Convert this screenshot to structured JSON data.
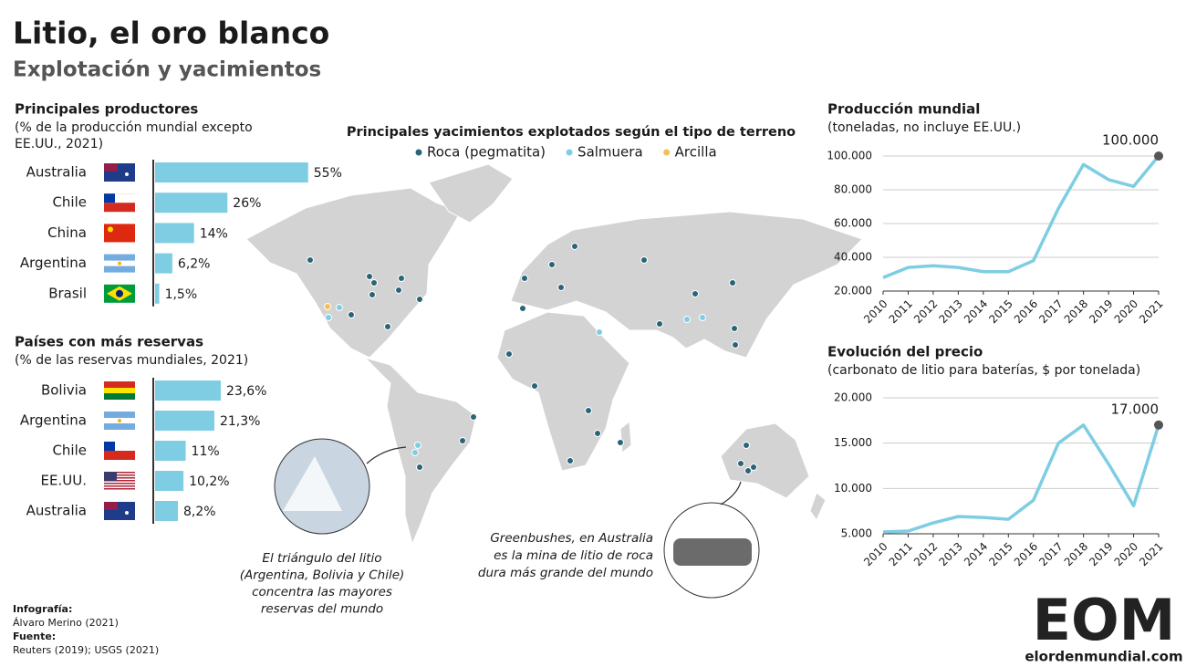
{
  "title": "Litio, el oro blanco",
  "subtitle": "Explotación y yacimientos",
  "chart_data": [
    {
      "type": "bar",
      "orientation": "horizontal",
      "title": "Principales productores",
      "subtitle": [
        "(% de la producción mundial excepto",
        "EE.UU., 2021)"
      ],
      "categories": [
        "Australia",
        "Chile",
        "China",
        "Argentina",
        "Brasil"
      ],
      "values": [
        55,
        26,
        14,
        6.2,
        1.5
      ],
      "value_labels": [
        "55%",
        "26%",
        "14%",
        "6,2%",
        "1,5%"
      ],
      "color": "#7ecde3"
    },
    {
      "type": "bar",
      "orientation": "horizontal",
      "title": "Países con más reservas",
      "subtitle": [
        "(% de las reservas mundiales, 2021)"
      ],
      "categories": [
        "Bolivia",
        "Argentina",
        "Chile",
        "EE.UU.",
        "Australia"
      ],
      "values": [
        23.6,
        21.3,
        11,
        10.2,
        8.2
      ],
      "value_labels": [
        "23,6%",
        "21,3%",
        "11%",
        "10,2%",
        "8,2%"
      ],
      "color": "#7ecde3"
    },
    {
      "type": "line",
      "title": "Producción mundial",
      "subtitle": [
        "(toneladas, no incluye EE.UU.)"
      ],
      "categories": [
        "2010",
        "2011",
        "2012",
        "2013",
        "2014",
        "2015",
        "2016",
        "2017",
        "2018",
        "2019",
        "2020",
        "2021"
      ],
      "values": [
        28000,
        34000,
        35000,
        34000,
        31500,
        31500,
        38000,
        69000,
        95000,
        86000,
        82000,
        100000
      ],
      "value_labels": [
        null,
        null,
        null,
        null,
        null,
        null,
        null,
        null,
        null,
        null,
        null,
        "100.000"
      ],
      "color": "#7ecde3",
      "ylim": [
        20000,
        100000
      ],
      "yticks": [
        {
          "value": 20000,
          "label": "20.000"
        },
        {
          "value": 40000,
          "label": "40.000"
        },
        {
          "value": 60000,
          "label": "60.000"
        },
        {
          "value": 80000,
          "label": "80.000"
        },
        {
          "value": 100000,
          "label": "100.000"
        }
      ],
      "grid": true
    },
    {
      "type": "line",
      "title": "Evolución del precio",
      "subtitle": [
        "(carbonato de litio para baterías, $ por tonelada)"
      ],
      "categories": [
        "2010",
        "2011",
        "2012",
        "2013",
        "2014",
        "2015",
        "2016",
        "2017",
        "2018",
        "2019",
        "2020",
        "2021"
      ],
      "values": [
        5200,
        5300,
        6200,
        6900,
        6800,
        6600,
        8700,
        15000,
        17000,
        12700,
        8100,
        17000
      ],
      "value_labels": [
        null,
        null,
        null,
        null,
        null,
        null,
        null,
        null,
        null,
        null,
        null,
        "17.000"
      ],
      "color": "#7ecde3",
      "ylim": [
        5000,
        20000
      ],
      "yticks": [
        {
          "value": 5000,
          "label": "5.000"
        },
        {
          "value": 10000,
          "label": "10.000"
        },
        {
          "value": 15000,
          "label": "15.000"
        },
        {
          "value": 20000,
          "label": "20.000"
        }
      ],
      "grid": true
    }
  ],
  "map": {
    "title": "Principales yacimientos explotados según el tipo de terreno",
    "legend": [
      {
        "label": "Roca (pegmatita)",
        "color": "#2a6478"
      },
      {
        "label": "Salmuera",
        "color": "#7ecde3"
      },
      {
        "label": "Arcilla",
        "color": "#f0c050"
      }
    ],
    "notes": [
      [
        "El triángulo del litio",
        "(Argentina, Bolivia y Chile)",
        "concentra las mayores",
        "reservas del mundo"
      ],
      [
        "Greenbushes, en Australia",
        "es la mina de litio de roca",
        "dura más grande del mundo"
      ]
    ]
  },
  "credits": [
    "Infografía:",
    "Álvaro Merino (2021)",
    "Fuente:",
    "Reuters (2019); USGS (2021)"
  ],
  "logo": {
    "mark": "EOM",
    "site": "elordenmundial.com"
  }
}
